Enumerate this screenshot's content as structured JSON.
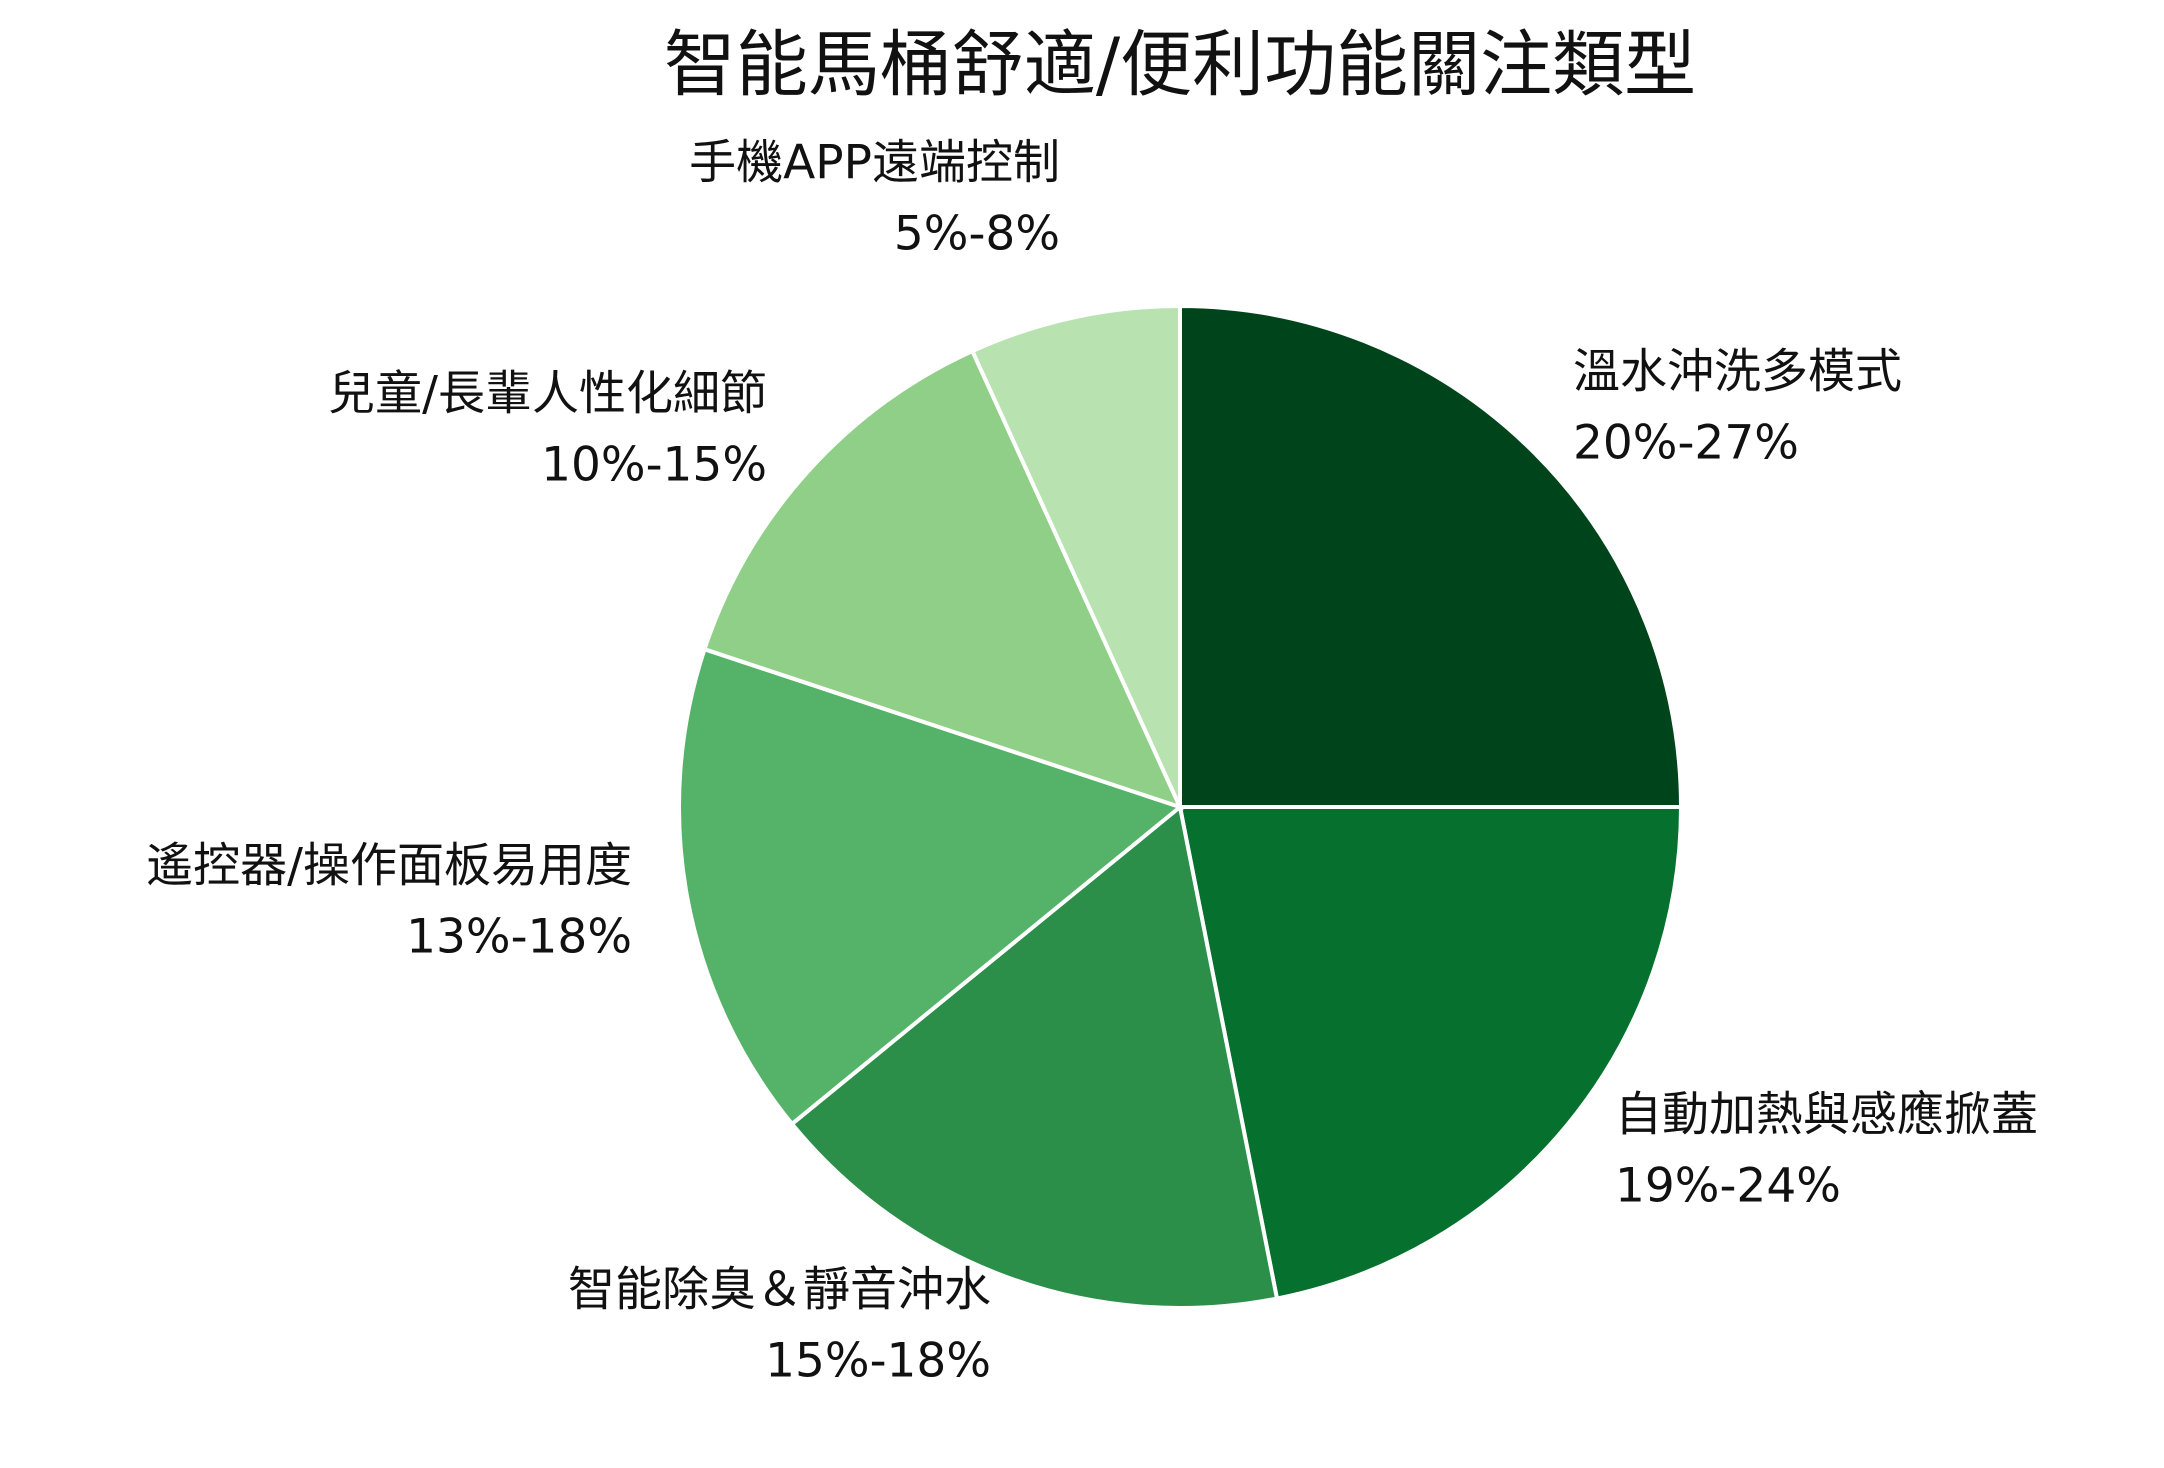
{
  "chart_data": {
    "type": "pie",
    "title": "智能馬桶舒適/便利功能關注類型",
    "categories": [
      "溫水沖洗多模式",
      "自動加熱與感應掀蓋",
      "智能除臭＆靜音沖水",
      "遙控器/操作面板易用度",
      "兒童/長輩人性化細節",
      "手機APP遠端控制"
    ],
    "values": [
      25,
      21.9,
      17.2,
      16,
      13.1,
      6.8
    ],
    "value_labels": [
      "20%-27%",
      "19%-24%",
      "15%-18%",
      "13%-18%",
      "10%-15%",
      "5%-8%"
    ],
    "colors": [
      "#00441b",
      "#06702e",
      "#2b8f4a",
      "#55b369",
      "#8fcf87",
      "#b8e3b1"
    ]
  }
}
